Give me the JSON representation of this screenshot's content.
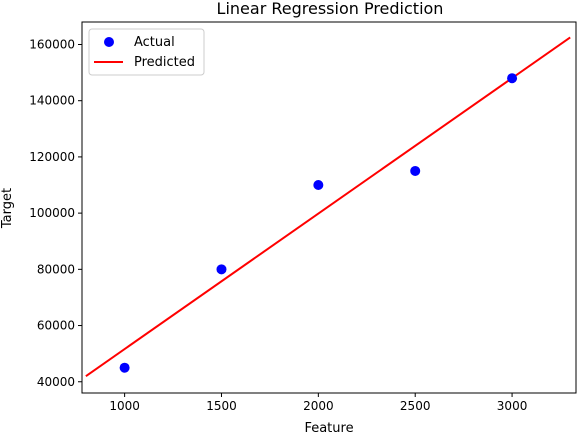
{
  "chart_data": {
    "type": "scatter",
    "title": "Linear Regression Prediction",
    "xlabel": "Feature",
    "ylabel": "Target",
    "xlim": [
      780,
      3330
    ],
    "ylim": [
      36000,
      168000
    ],
    "xticks": [
      1000,
      1500,
      2000,
      2500,
      3000
    ],
    "yticks": [
      40000,
      60000,
      80000,
      100000,
      120000,
      140000,
      160000
    ],
    "legend_position": "upper-left",
    "series": [
      {
        "name": "Actual",
        "kind": "scatter",
        "color": "#0000ff",
        "points": [
          {
            "x": 1000,
            "y": 45000
          },
          {
            "x": 1500,
            "y": 80000
          },
          {
            "x": 2000,
            "y": 110000
          },
          {
            "x": 2500,
            "y": 115000
          },
          {
            "x": 3000,
            "y": 148000
          }
        ]
      },
      {
        "name": "Predicted",
        "kind": "line",
        "color": "#ff0000",
        "points": [
          {
            "x": 800,
            "y": 42000
          },
          {
            "x": 3300,
            "y": 162500
          }
        ]
      }
    ]
  }
}
